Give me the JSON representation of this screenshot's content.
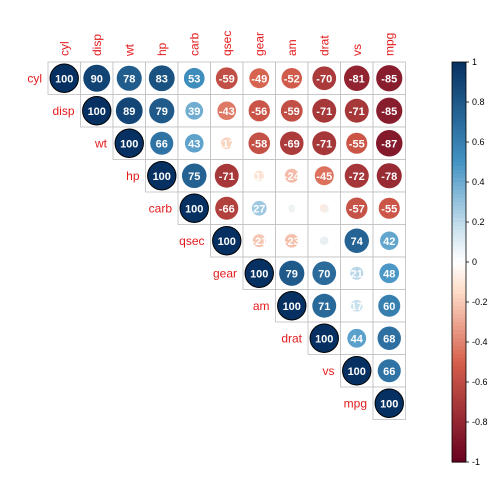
{
  "chart_data": {
    "type": "heatmap",
    "variables": [
      "cyl",
      "disp",
      "wt",
      "hp",
      "carb",
      "qsec",
      "gear",
      "am",
      "drat",
      "vs",
      "mpg"
    ],
    "matrix": [
      [
        100,
        90,
        78,
        83,
        53,
        -59,
        -49,
        -52,
        -70,
        -81,
        -85
      ],
      [
        90,
        100,
        89,
        79,
        39,
        -43,
        -56,
        -59,
        -71,
        -71,
        -85
      ],
      [
        78,
        89,
        100,
        66,
        43,
        -17,
        -58,
        -69,
        -71,
        -55,
        -87
      ],
      [
        83,
        79,
        66,
        100,
        75,
        -71,
        -13,
        -24,
        -45,
        -72,
        -78
      ],
      [
        53,
        39,
        43,
        75,
        100,
        -66,
        27,
        6,
        -9,
        -57,
        -55
      ],
      [
        -59,
        -43,
        -17,
        -71,
        -66,
        100,
        -21,
        -23,
        9,
        74,
        42
      ],
      [
        -49,
        -56,
        -58,
        -13,
        27,
        -21,
        100,
        79,
        70,
        21,
        48
      ],
      [
        -52,
        -59,
        -69,
        -24,
        6,
        -23,
        79,
        100,
        71,
        17,
        60
      ],
      [
        -70,
        -71,
        -71,
        -45,
        -9,
        9,
        70,
        71,
        100,
        44,
        68
      ],
      [
        -81,
        -71,
        -55,
        -72,
        -57,
        74,
        21,
        17,
        44,
        100,
        66
      ],
      [
        -85,
        -85,
        -87,
        -78,
        -55,
        42,
        48,
        60,
        68,
        66,
        100
      ]
    ],
    "display": "upper-triangle",
    "legend": {
      "placement": "right",
      "ticks": [
        "1",
        "0.8",
        "0.6",
        "0.4",
        "0.2",
        "0",
        "-0.2",
        "-0.4",
        "-0.6",
        "-0.8",
        "-1"
      ],
      "range": [
        -1,
        1
      ]
    },
    "label_color": "#e41a1c",
    "palette": {
      "negative_end": "#67001f",
      "negative_mid": "#d6604d",
      "negative_light": "#fddbc7",
      "neutral": "#ffffff",
      "positive_light": "#d1e5f0",
      "positive_mid": "#4393c3",
      "positive_end": "#053061"
    }
  }
}
